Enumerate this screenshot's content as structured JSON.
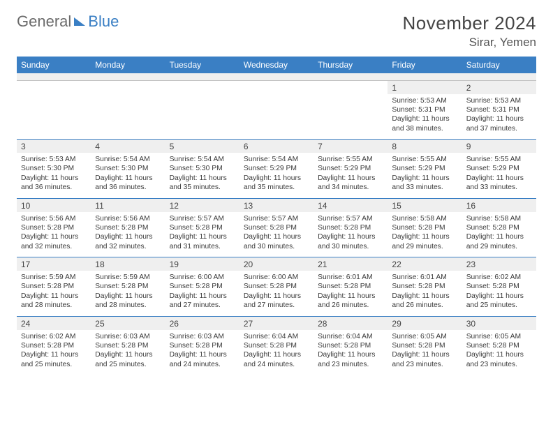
{
  "logo": {
    "word1": "General",
    "word2": "Blue"
  },
  "title": "November 2024",
  "location": "Sirar, Yemen",
  "day_headers": [
    "Sunday",
    "Monday",
    "Tuesday",
    "Wednesday",
    "Thursday",
    "Friday",
    "Saturday"
  ],
  "colors": {
    "header_bg": "#3a7fc4",
    "header_text": "#ffffff",
    "daynum_bg": "#efefef",
    "row_border": "#3a7fc4",
    "text": "#333333",
    "logo_gray": "#6b6b6b",
    "logo_blue": "#3a7fc4"
  },
  "weeks": [
    [
      null,
      null,
      null,
      null,
      null,
      {
        "n": "1",
        "sr": "Sunrise: 5:53 AM",
        "ss": "Sunset: 5:31 PM",
        "d1": "Daylight: 11 hours",
        "d2": "and 38 minutes."
      },
      {
        "n": "2",
        "sr": "Sunrise: 5:53 AM",
        "ss": "Sunset: 5:31 PM",
        "d1": "Daylight: 11 hours",
        "d2": "and 37 minutes."
      }
    ],
    [
      {
        "n": "3",
        "sr": "Sunrise: 5:53 AM",
        "ss": "Sunset: 5:30 PM",
        "d1": "Daylight: 11 hours",
        "d2": "and 36 minutes."
      },
      {
        "n": "4",
        "sr": "Sunrise: 5:54 AM",
        "ss": "Sunset: 5:30 PM",
        "d1": "Daylight: 11 hours",
        "d2": "and 36 minutes."
      },
      {
        "n": "5",
        "sr": "Sunrise: 5:54 AM",
        "ss": "Sunset: 5:30 PM",
        "d1": "Daylight: 11 hours",
        "d2": "and 35 minutes."
      },
      {
        "n": "6",
        "sr": "Sunrise: 5:54 AM",
        "ss": "Sunset: 5:29 PM",
        "d1": "Daylight: 11 hours",
        "d2": "and 35 minutes."
      },
      {
        "n": "7",
        "sr": "Sunrise: 5:55 AM",
        "ss": "Sunset: 5:29 PM",
        "d1": "Daylight: 11 hours",
        "d2": "and 34 minutes."
      },
      {
        "n": "8",
        "sr": "Sunrise: 5:55 AM",
        "ss": "Sunset: 5:29 PM",
        "d1": "Daylight: 11 hours",
        "d2": "and 33 minutes."
      },
      {
        "n": "9",
        "sr": "Sunrise: 5:55 AM",
        "ss": "Sunset: 5:29 PM",
        "d1": "Daylight: 11 hours",
        "d2": "and 33 minutes."
      }
    ],
    [
      {
        "n": "10",
        "sr": "Sunrise: 5:56 AM",
        "ss": "Sunset: 5:28 PM",
        "d1": "Daylight: 11 hours",
        "d2": "and 32 minutes."
      },
      {
        "n": "11",
        "sr": "Sunrise: 5:56 AM",
        "ss": "Sunset: 5:28 PM",
        "d1": "Daylight: 11 hours",
        "d2": "and 32 minutes."
      },
      {
        "n": "12",
        "sr": "Sunrise: 5:57 AM",
        "ss": "Sunset: 5:28 PM",
        "d1": "Daylight: 11 hours",
        "d2": "and 31 minutes."
      },
      {
        "n": "13",
        "sr": "Sunrise: 5:57 AM",
        "ss": "Sunset: 5:28 PM",
        "d1": "Daylight: 11 hours",
        "d2": "and 30 minutes."
      },
      {
        "n": "14",
        "sr": "Sunrise: 5:57 AM",
        "ss": "Sunset: 5:28 PM",
        "d1": "Daylight: 11 hours",
        "d2": "and 30 minutes."
      },
      {
        "n": "15",
        "sr": "Sunrise: 5:58 AM",
        "ss": "Sunset: 5:28 PM",
        "d1": "Daylight: 11 hours",
        "d2": "and 29 minutes."
      },
      {
        "n": "16",
        "sr": "Sunrise: 5:58 AM",
        "ss": "Sunset: 5:28 PM",
        "d1": "Daylight: 11 hours",
        "d2": "and 29 minutes."
      }
    ],
    [
      {
        "n": "17",
        "sr": "Sunrise: 5:59 AM",
        "ss": "Sunset: 5:28 PM",
        "d1": "Daylight: 11 hours",
        "d2": "and 28 minutes."
      },
      {
        "n": "18",
        "sr": "Sunrise: 5:59 AM",
        "ss": "Sunset: 5:28 PM",
        "d1": "Daylight: 11 hours",
        "d2": "and 28 minutes."
      },
      {
        "n": "19",
        "sr": "Sunrise: 6:00 AM",
        "ss": "Sunset: 5:28 PM",
        "d1": "Daylight: 11 hours",
        "d2": "and 27 minutes."
      },
      {
        "n": "20",
        "sr": "Sunrise: 6:00 AM",
        "ss": "Sunset: 5:28 PM",
        "d1": "Daylight: 11 hours",
        "d2": "and 27 minutes."
      },
      {
        "n": "21",
        "sr": "Sunrise: 6:01 AM",
        "ss": "Sunset: 5:28 PM",
        "d1": "Daylight: 11 hours",
        "d2": "and 26 minutes."
      },
      {
        "n": "22",
        "sr": "Sunrise: 6:01 AM",
        "ss": "Sunset: 5:28 PM",
        "d1": "Daylight: 11 hours",
        "d2": "and 26 minutes."
      },
      {
        "n": "23",
        "sr": "Sunrise: 6:02 AM",
        "ss": "Sunset: 5:28 PM",
        "d1": "Daylight: 11 hours",
        "d2": "and 25 minutes."
      }
    ],
    [
      {
        "n": "24",
        "sr": "Sunrise: 6:02 AM",
        "ss": "Sunset: 5:28 PM",
        "d1": "Daylight: 11 hours",
        "d2": "and 25 minutes."
      },
      {
        "n": "25",
        "sr": "Sunrise: 6:03 AM",
        "ss": "Sunset: 5:28 PM",
        "d1": "Daylight: 11 hours",
        "d2": "and 25 minutes."
      },
      {
        "n": "26",
        "sr": "Sunrise: 6:03 AM",
        "ss": "Sunset: 5:28 PM",
        "d1": "Daylight: 11 hours",
        "d2": "and 24 minutes."
      },
      {
        "n": "27",
        "sr": "Sunrise: 6:04 AM",
        "ss": "Sunset: 5:28 PM",
        "d1": "Daylight: 11 hours",
        "d2": "and 24 minutes."
      },
      {
        "n": "28",
        "sr": "Sunrise: 6:04 AM",
        "ss": "Sunset: 5:28 PM",
        "d1": "Daylight: 11 hours",
        "d2": "and 23 minutes."
      },
      {
        "n": "29",
        "sr": "Sunrise: 6:05 AM",
        "ss": "Sunset: 5:28 PM",
        "d1": "Daylight: 11 hours",
        "d2": "and 23 minutes."
      },
      {
        "n": "30",
        "sr": "Sunrise: 6:05 AM",
        "ss": "Sunset: 5:28 PM",
        "d1": "Daylight: 11 hours",
        "d2": "and 23 minutes."
      }
    ]
  ]
}
